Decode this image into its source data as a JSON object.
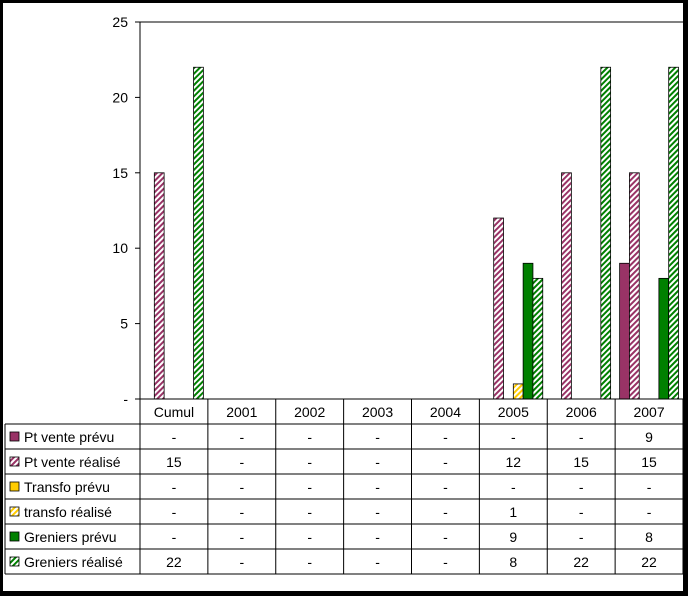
{
  "chart_data": {
    "type": "bar",
    "categories": [
      "Cumul",
      "2001",
      "2002",
      "2003",
      "2004",
      "2005",
      "2006",
      "2007"
    ],
    "ylim": [
      0,
      25
    ],
    "yticks": [
      {
        "value": 0,
        "label": "-"
      },
      {
        "value": 5,
        "label": "5"
      },
      {
        "value": 10,
        "label": "10"
      },
      {
        "value": 15,
        "label": "15"
      },
      {
        "value": 20,
        "label": "20"
      },
      {
        "value": 25,
        "label": "25"
      }
    ],
    "legend_placement": "data-table",
    "series": [
      {
        "name": "Pt vente prévu",
        "color": "#993366",
        "pattern": "solid",
        "values": [
          0,
          0,
          0,
          0,
          0,
          0,
          0,
          9
        ],
        "labels": [
          "-",
          "-",
          "-",
          "-",
          "-",
          "-",
          "-",
          "9"
        ]
      },
      {
        "name": "Pt vente réalisé",
        "color": "#993366",
        "pattern": "hatched",
        "values": [
          15,
          0,
          0,
          0,
          0,
          12,
          15,
          15
        ],
        "labels": [
          "15",
          "-",
          "-",
          "-",
          "-",
          "12",
          "15",
          "15"
        ]
      },
      {
        "name": "Transfo prévu",
        "color": "#FFCC00",
        "pattern": "solid",
        "values": [
          0,
          0,
          0,
          0,
          0,
          0,
          0,
          0
        ],
        "labels": [
          "-",
          "-",
          "-",
          "-",
          "-",
          "-",
          "-",
          "-"
        ]
      },
      {
        "name": "transfo réalisé",
        "color": "#FFCC00",
        "pattern": "hatched",
        "values": [
          0,
          0,
          0,
          0,
          0,
          1,
          0,
          0
        ],
        "labels": [
          "-",
          "-",
          "-",
          "-",
          "-",
          "1",
          "-",
          "-"
        ]
      },
      {
        "name": "Greniers prévu",
        "color": "#008000",
        "pattern": "solid",
        "values": [
          0,
          0,
          0,
          0,
          0,
          9,
          0,
          8
        ],
        "labels": [
          "-",
          "-",
          "-",
          "-",
          "-",
          "9",
          "-",
          "8"
        ]
      },
      {
        "name": "Greniers réalisé",
        "color": "#008000",
        "pattern": "hatched",
        "values": [
          22,
          0,
          0,
          0,
          0,
          8,
          22,
          22
        ],
        "labels": [
          "22",
          "-",
          "-",
          "-",
          "-",
          "8",
          "22",
          "22"
        ]
      }
    ]
  }
}
